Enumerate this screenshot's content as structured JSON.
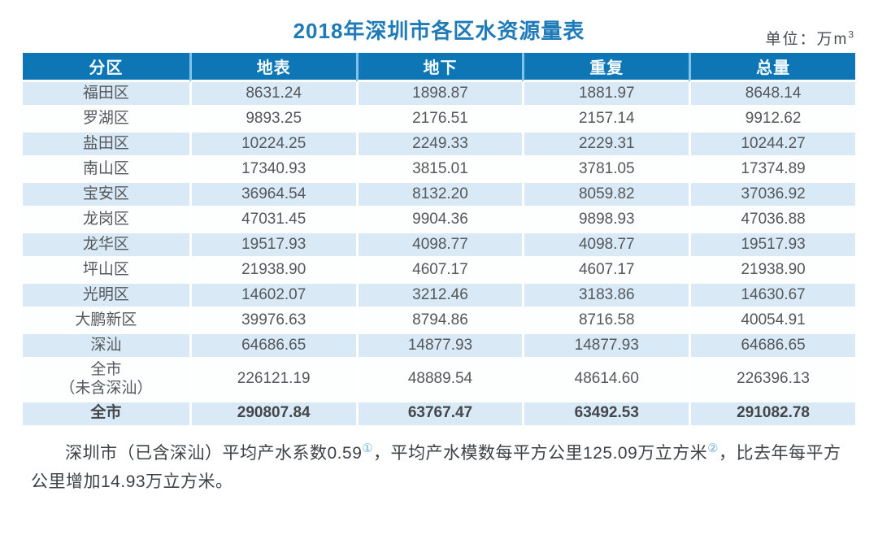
{
  "title": "2018年深圳市各区水资源量表",
  "unit": {
    "text": "单位：万m",
    "superscript": "3"
  },
  "table": {
    "columns": [
      "分区",
      "地表",
      "地下",
      "重复",
      "总量"
    ],
    "rows": [
      {
        "name": "福田区",
        "values": [
          "8631.24",
          "1898.87",
          "1881.97",
          "8648.14"
        ]
      },
      {
        "name": "罗湖区",
        "values": [
          "9893.25",
          "2176.51",
          "2157.14",
          "9912.62"
        ]
      },
      {
        "name": "盐田区",
        "values": [
          "10224.25",
          "2249.33",
          "2229.31",
          "10244.27"
        ]
      },
      {
        "name": "南山区",
        "values": [
          "17340.93",
          "3815.01",
          "3781.05",
          "17374.89"
        ]
      },
      {
        "name": "宝安区",
        "values": [
          "36964.54",
          "8132.20",
          "8059.82",
          "37036.92"
        ]
      },
      {
        "name": "龙岗区",
        "values": [
          "47031.45",
          "9904.36",
          "9898.93",
          "47036.88"
        ]
      },
      {
        "name": "龙华区",
        "values": [
          "19517.93",
          "4098.77",
          "4098.77",
          "19517.93"
        ]
      },
      {
        "name": "坪山区",
        "values": [
          "21938.90",
          "4607.17",
          "4607.17",
          "21938.90"
        ]
      },
      {
        "name": "光明区",
        "values": [
          "14602.07",
          "3212.46",
          "3183.86",
          "14630.67"
        ]
      },
      {
        "name": "大鹏新区",
        "values": [
          "39976.63",
          "8794.86",
          "8716.58",
          "40054.91"
        ]
      },
      {
        "name": "深汕",
        "values": [
          "64686.65",
          "14877.93",
          "14877.93",
          "64686.65"
        ]
      },
      {
        "name": "全市\n（未含深汕）",
        "values": [
          "226121.19",
          "48889.54",
          "48614.60",
          "226396.13"
        ]
      },
      {
        "name": "全市",
        "values": [
          "290807.84",
          "63767.47",
          "63492.53",
          "291082.78"
        ]
      }
    ]
  },
  "footnote": {
    "part1": "深圳市（已含深汕）平均产水系数0.59",
    "ref1": "①",
    "part2": "，平均产水模数每平方公里125.09万立方米",
    "ref2": "②",
    "part3": "，比去年每平方公里增加14.93万立方米。"
  },
  "colors": {
    "header_bg": "#0e76b5",
    "row_alt_bg": "#d9eaf6",
    "title": "#1e7bb8",
    "footnote_ref": "#6cb2d8"
  }
}
